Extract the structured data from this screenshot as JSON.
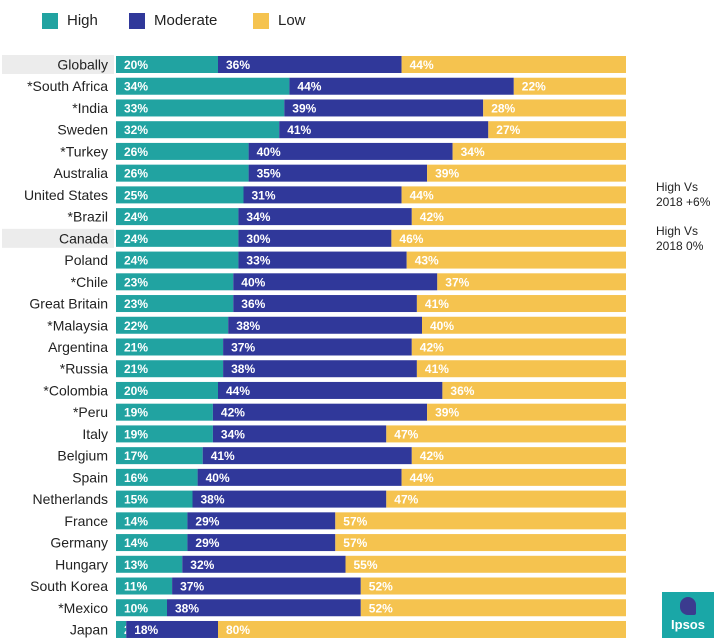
{
  "legend": [
    {
      "label": "High",
      "color": "#21a3a1"
    },
    {
      "label": "Moderate",
      "color": "#30389a"
    },
    {
      "label": "Low",
      "color": "#f5c34f"
    }
  ],
  "notes": [
    {
      "line1": "High Vs",
      "line2": "2018 +6%"
    },
    {
      "line1": "High Vs",
      "line2": "2018 0%"
    }
  ],
  "logo": "Ipsos",
  "chart_data": {
    "type": "bar",
    "orientation": "horizontal",
    "stacked": true,
    "unit": "%",
    "highlighted_categories": [
      "Globally",
      "Canada"
    ],
    "categories": [
      "Globally",
      "*South Africa",
      "*India",
      "Sweden",
      "*Turkey",
      "Australia",
      "United States",
      "*Brazil",
      "Canada",
      "Poland",
      "*Chile",
      "Great Britain",
      "*Malaysia",
      "Argentina",
      "*Russia",
      "*Colombia",
      "*Peru",
      "Italy",
      "Belgium",
      "Spain",
      "Netherlands",
      "France",
      "Germany",
      "Hungary",
      "South Korea",
      "*Mexico",
      "Japan"
    ],
    "series": [
      {
        "name": "High",
        "color": "#21a3a1",
        "values": [
          20,
          34,
          33,
          32,
          26,
          26,
          25,
          24,
          24,
          24,
          23,
          23,
          22,
          21,
          21,
          20,
          19,
          19,
          17,
          16,
          15,
          14,
          14,
          13,
          11,
          10,
          2
        ]
      },
      {
        "name": "Moderate",
        "color": "#30389a",
        "values": [
          36,
          44,
          39,
          41,
          40,
          35,
          31,
          34,
          30,
          33,
          40,
          36,
          38,
          37,
          38,
          44,
          42,
          34,
          41,
          40,
          38,
          29,
          29,
          32,
          37,
          38,
          18
        ]
      },
      {
        "name": "Low",
        "color": "#f5c34f",
        "values": [
          44,
          22,
          28,
          27,
          34,
          39,
          44,
          42,
          46,
          43,
          37,
          41,
          40,
          42,
          41,
          36,
          39,
          47,
          42,
          44,
          47,
          57,
          57,
          55,
          52,
          52,
          80
        ]
      }
    ],
    "xlim": [
      0,
      100
    ]
  }
}
